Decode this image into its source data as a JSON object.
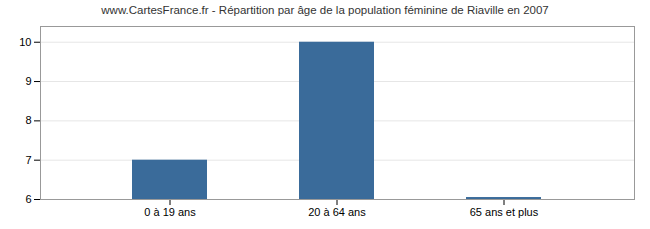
{
  "chart_data": {
    "type": "bar",
    "title": "www.CartesFrance.fr - Répartition par âge de la population féminine de Riaville en 2007",
    "categories": [
      "0 à 19 ans",
      "20 à 64 ans",
      "65 ans et plus"
    ],
    "values": [
      7,
      10,
      6.05
    ],
    "color": "#3a6b9a",
    "ylim": [
      6,
      10.4
    ],
    "yticks": [
      6,
      7,
      8,
      9,
      10
    ],
    "grid": true
  }
}
